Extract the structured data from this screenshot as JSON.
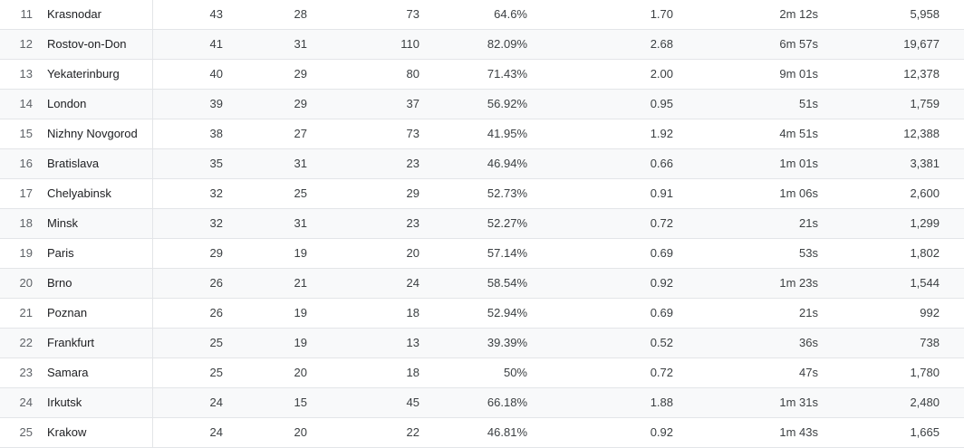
{
  "table": {
    "rows": [
      {
        "rank": "11",
        "city": "Krasnodar",
        "c1": "43",
        "c2": "28",
        "c3": "73",
        "pct": "64.6%",
        "ratio": "1.70",
        "dur": "2m 12s",
        "views": "5,958"
      },
      {
        "rank": "12",
        "city": "Rostov-on-Don",
        "c1": "41",
        "c2": "31",
        "c3": "110",
        "pct": "82.09%",
        "ratio": "2.68",
        "dur": "6m 57s",
        "views": "19,677"
      },
      {
        "rank": "13",
        "city": "Yekaterinburg",
        "c1": "40",
        "c2": "29",
        "c3": "80",
        "pct": "71.43%",
        "ratio": "2.00",
        "dur": "9m 01s",
        "views": "12,378"
      },
      {
        "rank": "14",
        "city": "London",
        "c1": "39",
        "c2": "29",
        "c3": "37",
        "pct": "56.92%",
        "ratio": "0.95",
        "dur": "51s",
        "views": "1,759"
      },
      {
        "rank": "15",
        "city": "Nizhny Novgorod",
        "c1": "38",
        "c2": "27",
        "c3": "73",
        "pct": "41.95%",
        "ratio": "1.92",
        "dur": "4m 51s",
        "views": "12,388"
      },
      {
        "rank": "16",
        "city": "Bratislava",
        "c1": "35",
        "c2": "31",
        "c3": "23",
        "pct": "46.94%",
        "ratio": "0.66",
        "dur": "1m 01s",
        "views": "3,381"
      },
      {
        "rank": "17",
        "city": "Chelyabinsk",
        "c1": "32",
        "c2": "25",
        "c3": "29",
        "pct": "52.73%",
        "ratio": "0.91",
        "dur": "1m 06s",
        "views": "2,600"
      },
      {
        "rank": "18",
        "city": "Minsk",
        "c1": "32",
        "c2": "31",
        "c3": "23",
        "pct": "52.27%",
        "ratio": "0.72",
        "dur": "21s",
        "views": "1,299"
      },
      {
        "rank": "19",
        "city": "Paris",
        "c1": "29",
        "c2": "19",
        "c3": "20",
        "pct": "57.14%",
        "ratio": "0.69",
        "dur": "53s",
        "views": "1,802"
      },
      {
        "rank": "20",
        "city": "Brno",
        "c1": "26",
        "c2": "21",
        "c3": "24",
        "pct": "58.54%",
        "ratio": "0.92",
        "dur": "1m 23s",
        "views": "1,544"
      },
      {
        "rank": "21",
        "city": "Poznan",
        "c1": "26",
        "c2": "19",
        "c3": "18",
        "pct": "52.94%",
        "ratio": "0.69",
        "dur": "21s",
        "views": "992"
      },
      {
        "rank": "22",
        "city": "Frankfurt",
        "c1": "25",
        "c2": "19",
        "c3": "13",
        "pct": "39.39%",
        "ratio": "0.52",
        "dur": "36s",
        "views": "738"
      },
      {
        "rank": "23",
        "city": "Samara",
        "c1": "25",
        "c2": "20",
        "c3": "18",
        "pct": "50%",
        "ratio": "0.72",
        "dur": "47s",
        "views": "1,780"
      },
      {
        "rank": "24",
        "city": "Irkutsk",
        "c1": "24",
        "c2": "15",
        "c3": "45",
        "pct": "66.18%",
        "ratio": "1.88",
        "dur": "1m 31s",
        "views": "2,480"
      },
      {
        "rank": "25",
        "city": "Krakow",
        "c1": "24",
        "c2": "20",
        "c3": "22",
        "pct": "46.81%",
        "ratio": "0.92",
        "dur": "1m 43s",
        "views": "1,665"
      }
    ]
  }
}
